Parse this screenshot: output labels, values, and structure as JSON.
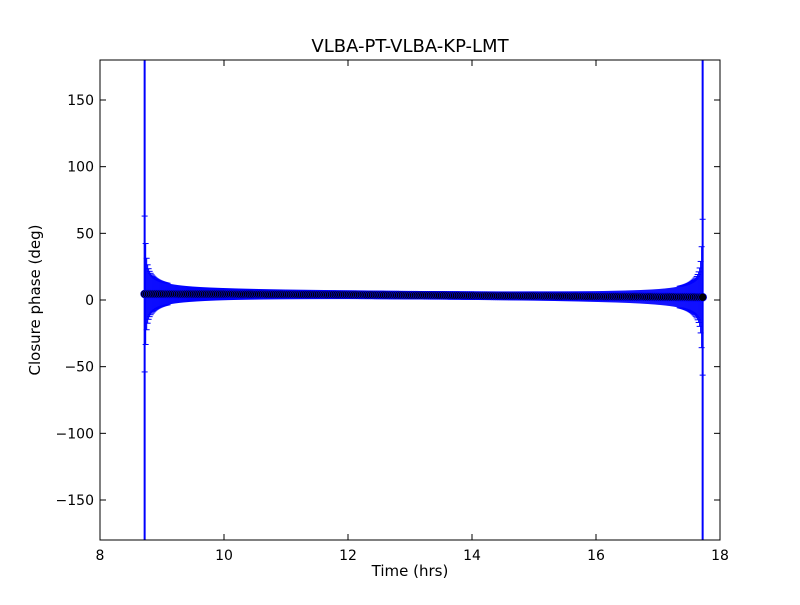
{
  "chart_data": {
    "type": "scatter",
    "title": "VLBA-PT-VLBA-KP-LMT",
    "xlabel": "Time (hrs)",
    "ylabel": "Closure phase (deg)",
    "xlim": [
      8,
      18
    ],
    "ylim": [
      -180,
      180
    ],
    "xticks": [
      8,
      10,
      12,
      14,
      16,
      18
    ],
    "xtick_labels": [
      "8",
      "10",
      "12",
      "14",
      "16",
      "18"
    ],
    "yticks": [
      -150,
      -100,
      -50,
      0,
      50,
      100,
      150
    ],
    "ytick_labels": [
      "−150",
      "−100",
      "−50",
      "0",
      "50",
      "100",
      "150"
    ],
    "grid": false,
    "legend": "none",
    "colors": {
      "errorbar": "#0000ff",
      "marker": "#000000",
      "marker_edge": "#0000ff"
    },
    "series": [
      {
        "marker": "circle",
        "time_start": 8.72,
        "time_end": 17.72,
        "x": [
          8.72,
          9.0,
          9.5,
          10.0,
          10.5,
          11.0,
          11.5,
          12.0,
          12.5,
          13.0,
          13.5,
          14.0,
          14.5,
          15.0,
          15.5,
          16.0,
          16.5,
          17.0,
          17.5,
          17.72
        ],
        "y": [
          4.5,
          4.5,
          4.4,
          4.4,
          4.3,
          4.2,
          4.1,
          4.0,
          3.8,
          3.6,
          3.5,
          3.3,
          3.1,
          3.0,
          2.8,
          2.6,
          2.5,
          2.3,
          2.2,
          2.1
        ]
      }
    ]
  }
}
